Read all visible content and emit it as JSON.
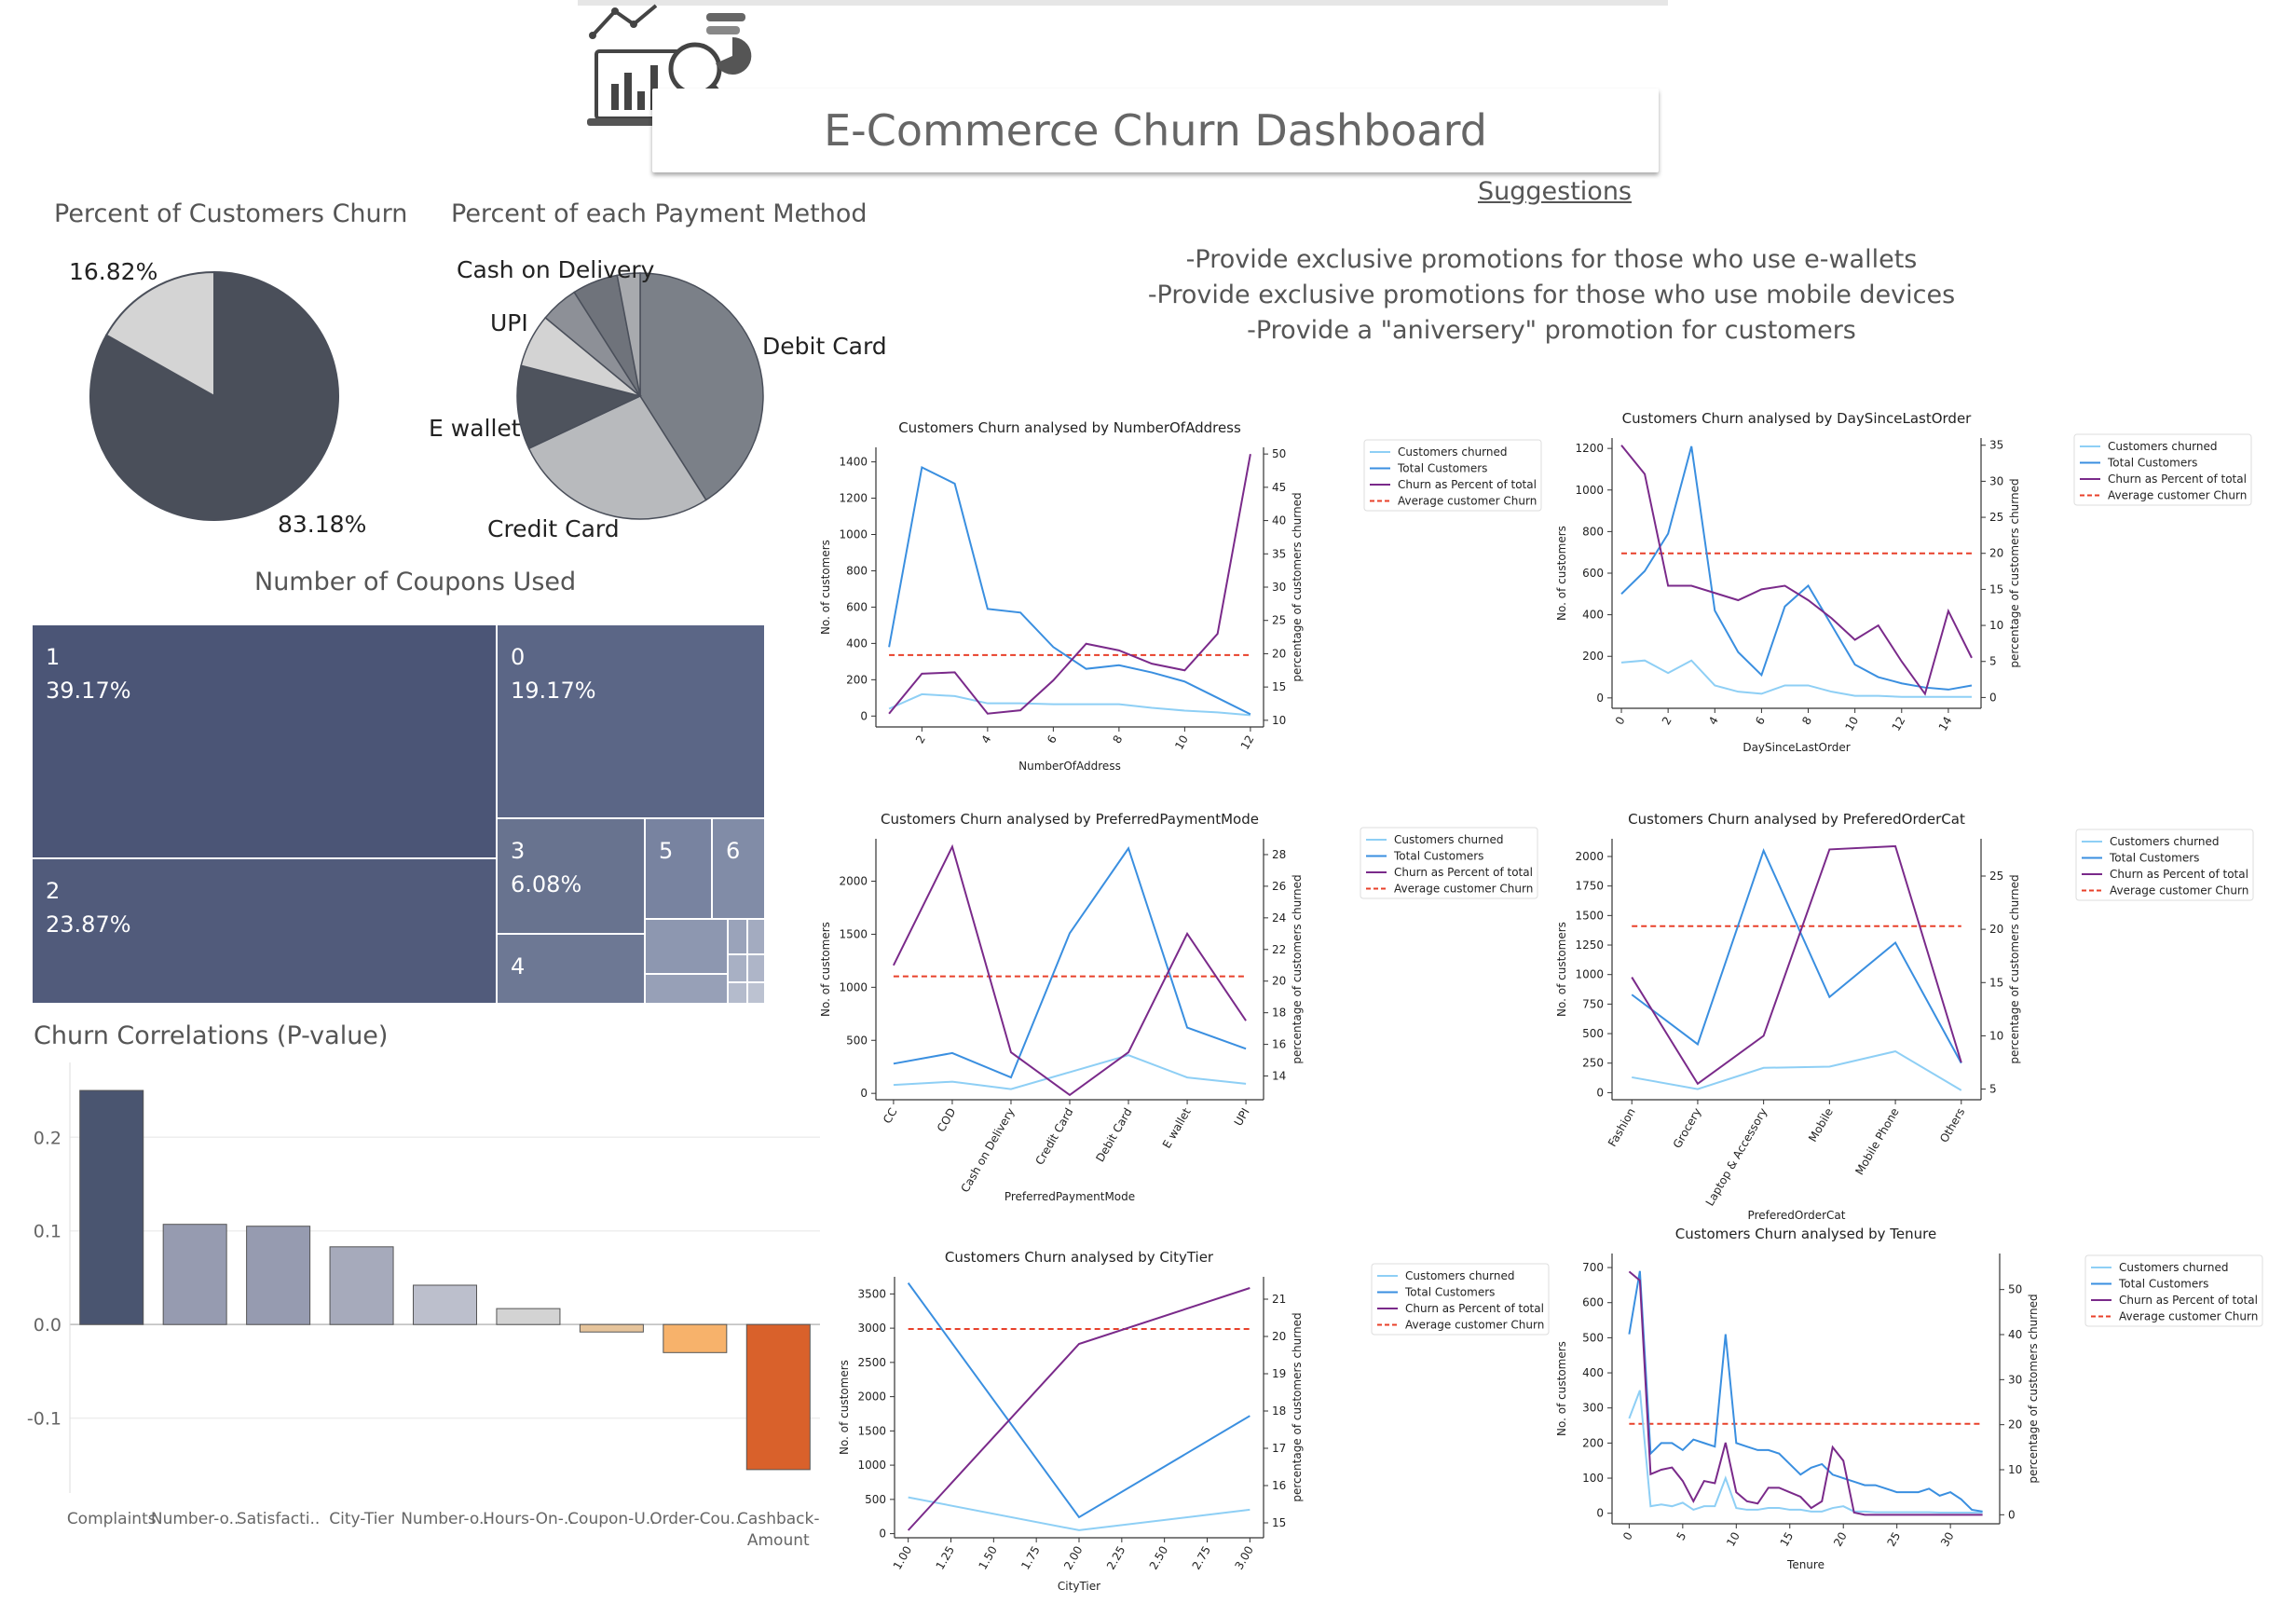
{
  "dashboard": {
    "title": "E-Commerce Churn Dashboard",
    "suggestions_heading": "Suggestions",
    "suggestions": [
      "-Provide exclusive promotions for those who use e-wallets",
      "-Provide exclusive promotions for those who use mobile devices",
      "-Provide a \"aniversery\" promotion for customers"
    ]
  },
  "legend_labels": [
    "Customers churned",
    "Total Customers",
    "Churn as Percent of total",
    "Average customer Churn"
  ],
  "colors": {
    "dark": "#4a5570",
    "churned": "#8ecff5",
    "total": "#3a8fe0",
    "percent": "#7a2a8a",
    "avg": "#e8402a"
  },
  "chart_data": [
    {
      "id": "churn_pie",
      "type": "pie",
      "title": "Percent of Customers Churn",
      "slices": [
        {
          "label": "83.18%",
          "value": 83.18,
          "color": "#4a4f5a"
        },
        {
          "label": "16.82%",
          "value": 16.82,
          "color": "#d4d4d4"
        }
      ]
    },
    {
      "id": "payment_pie",
      "type": "pie",
      "title": "Percent of each Payment Method",
      "slices": [
        {
          "label": "Debit Card",
          "value": 41,
          "color": "#7b8088"
        },
        {
          "label": "Credit Card",
          "value": 27,
          "color": "#b8babd"
        },
        {
          "label": "E wallet",
          "value": 11,
          "color": "#4e535d"
        },
        {
          "label": "UPI",
          "value": 7,
          "color": "#d3d3d3"
        },
        {
          "label": "",
          "value": 5,
          "color": "#8d9097"
        },
        {
          "label": "Cash on Delivery",
          "value": 6,
          "color": "#6f737b"
        },
        {
          "label": "",
          "value": 3,
          "color": "#a8aaae"
        }
      ]
    },
    {
      "id": "coupons_treemap",
      "type": "treemap",
      "title": "Number of Coupons Used",
      "cells": [
        {
          "label": "1",
          "value": "39.17%"
        },
        {
          "label": "0",
          "value": "19.17%"
        },
        {
          "label": "2",
          "value": "23.87%"
        },
        {
          "label": "3",
          "value": "6.08%"
        },
        {
          "label": "4",
          "value": ""
        },
        {
          "label": "5",
          "value": ""
        },
        {
          "label": "6",
          "value": ""
        }
      ]
    },
    {
      "id": "pvalue_bars",
      "type": "bar",
      "title": "Churn Correlations (P-value)",
      "categories": [
        "Complaints",
        "Number-o..",
        "Satisfacti..",
        "City-Tier",
        "Number-o..",
        "Hours-On-..",
        "Coupon-U..",
        "Order-Cou..",
        "Cashback-\nAmount"
      ],
      "values": [
        0.25,
        0.107,
        0.105,
        0.083,
        0.042,
        0.017,
        -0.008,
        -0.03,
        -0.155
      ],
      "colors": [
        "#4a5570",
        "#969bb0",
        "#969bb0",
        "#a6aabb",
        "#bcbfcc",
        "#d3d3d3",
        "#e6c49b",
        "#f7b26b",
        "#d9612b"
      ],
      "yticks": [
        0.2,
        0.1,
        0.0,
        -0.1
      ],
      "ytick_labels": [
        "0.2",
        "0.1",
        "0.0",
        "-0.1"
      ],
      "ylim": [
        -0.18,
        0.26
      ]
    },
    {
      "id": "addr",
      "type": "line",
      "title": "Customers Churn analysed by NumberOfAddress",
      "xlabel": "NumberOfAddress",
      "ylabel": "No. of customers",
      "y2label": "percentage of customers churned",
      "x": [
        1,
        2,
        3,
        4,
        5,
        6,
        7,
        8,
        9,
        10,
        11,
        12
      ],
      "xticks": [
        2,
        4,
        6,
        8,
        10,
        12
      ],
      "xtick_labels": [
        "2",
        "4",
        "6",
        "8",
        "10",
        "12"
      ],
      "xlim": [
        0.6,
        12.4
      ],
      "yticks": [
        0,
        200,
        400,
        600,
        800,
        1000,
        1200,
        1400
      ],
      "ytick_labels": [
        "0",
        "200",
        "400",
        "600",
        "800",
        "1000",
        "1200",
        "1400"
      ],
      "ylim": [
        -60,
        1480
      ],
      "y2ticks": [
        10,
        15,
        20,
        25,
        30,
        35,
        40,
        45,
        50
      ],
      "y2tick_labels": [
        "10",
        "15",
        "20",
        "25",
        "30",
        "35",
        "40",
        "45",
        "50"
      ],
      "y2lim": [
        9,
        51
      ],
      "churned": [
        40,
        120,
        110,
        70,
        70,
        65,
        65,
        65,
        45,
        30,
        20,
        5
      ],
      "total": [
        380,
        1370,
        1280,
        590,
        570,
        380,
        260,
        280,
        240,
        190,
        100,
        10
      ],
      "percent": [
        11,
        17,
        17.2,
        11,
        11.5,
        16,
        21.5,
        20.5,
        18.5,
        17.5,
        23,
        50
      ],
      "average": 19.8
    },
    {
      "id": "days",
      "type": "line",
      "title": "Customers Churn analysed by DaySinceLastOrder",
      "xlabel": "DaySinceLastOrder",
      "ylabel": "No. of customers",
      "y2label": "percentage of customers churned",
      "x": [
        0,
        1,
        2,
        3,
        4,
        5,
        6,
        7,
        8,
        9,
        10,
        11,
        12,
        13,
        14,
        15
      ],
      "xticks": [
        0,
        2,
        4,
        6,
        8,
        10,
        12,
        14
      ],
      "xtick_labels": [
        "0",
        "2",
        "4",
        "6",
        "8",
        "10",
        "12",
        "14"
      ],
      "xlim": [
        -0.4,
        15.4
      ],
      "yticks": [
        0,
        200,
        400,
        600,
        800,
        1000,
        1200
      ],
      "ytick_labels": [
        "0",
        "200",
        "400",
        "600",
        "800",
        "1000",
        "1200"
      ],
      "ylim": [
        -50,
        1250
      ],
      "y2ticks": [
        0,
        5,
        10,
        15,
        20,
        25,
        30,
        35
      ],
      "y2tick_labels": [
        "0",
        "5",
        "10",
        "15",
        "20",
        "25",
        "30",
        "35"
      ],
      "y2lim": [
        -1.5,
        36
      ],
      "churned": [
        170,
        180,
        120,
        180,
        60,
        30,
        20,
        60,
        60,
        30,
        10,
        10,
        5,
        5,
        5,
        5
      ],
      "total": [
        500,
        610,
        790,
        1210,
        420,
        220,
        110,
        440,
        540,
        350,
        160,
        100,
        70,
        50,
        40,
        60
      ],
      "percent": [
        35,
        31,
        15.5,
        15.5,
        14.5,
        13.5,
        15,
        15.5,
        13.5,
        11,
        8,
        10,
        5,
        0.5,
        12,
        5.5
      ],
      "average": 20
    },
    {
      "id": "payment",
      "type": "line",
      "title": "Customers Churn analysed by PreferredPaymentMode",
      "xlabel": "PreferredPaymentMode",
      "ylabel": "No. of customers",
      "y2label": "percentage of customers churned",
      "categories": [
        "CC",
        "COD",
        "Cash on Delivery",
        "Credit Card",
        "Debit Card",
        "E wallet",
        "UPI"
      ],
      "yticks": [
        0,
        500,
        1000,
        1500,
        2000
      ],
      "ytick_labels": [
        "0",
        "500",
        "1000",
        "1500",
        "2000"
      ],
      "ylim": [
        -60,
        2400
      ],
      "y2ticks": [
        14,
        16,
        18,
        20,
        22,
        24,
        26,
        28
      ],
      "y2tick_labels": [
        "14",
        "16",
        "18",
        "20",
        "22",
        "24",
        "26",
        "28"
      ],
      "y2lim": [
        12.5,
        29
      ],
      "churned": [
        80,
        110,
        40,
        200,
        360,
        150,
        90
      ],
      "total": [
        280,
        380,
        150,
        1510,
        2310,
        620,
        420
      ],
      "percent": [
        21,
        28.5,
        15.5,
        12.8,
        15.5,
        23,
        17.5
      ],
      "average": 20.3
    },
    {
      "id": "ordercat",
      "type": "line",
      "title": "Customers Churn analysed by PreferedOrderCat",
      "xlabel": "PreferedOrderCat",
      "ylabel": "No. of customers",
      "y2label": "percentage of customers churned",
      "categories": [
        "Fashion",
        "Grocery",
        "Laptop & Accessory",
        "Mobile",
        "Mobile Phone",
        "Others"
      ],
      "yticks": [
        0,
        250,
        500,
        750,
        1000,
        1250,
        1500,
        1750,
        2000
      ],
      "ytick_labels": [
        "0",
        "250",
        "500",
        "750",
        "1000",
        "1250",
        "1500",
        "1750",
        "2000"
      ],
      "ylim": [
        -60,
        2150
      ],
      "y2ticks": [
        5,
        10,
        15,
        20,
        25
      ],
      "y2tick_labels": [
        "5",
        "10",
        "15",
        "20",
        "25"
      ],
      "y2lim": [
        4,
        28.5
      ],
      "churned": [
        130,
        30,
        210,
        220,
        350,
        20
      ],
      "total": [
        830,
        410,
        2050,
        810,
        1270,
        250
      ],
      "percent": [
        15.5,
        5.5,
        10,
        27.5,
        27.8,
        7.5
      ],
      "average": 20.3
    },
    {
      "id": "citytier",
      "type": "line",
      "title": "Customers Churn analysed by CityTier",
      "xlabel": "CityTier",
      "ylabel": "No. of customers",
      "y2label": "percentage of customers churned",
      "x": [
        1,
        2,
        3
      ],
      "xticks": [
        1,
        1.25,
        1.5,
        1.75,
        2,
        2.25,
        2.5,
        2.75,
        3
      ],
      "xtick_labels": [
        "1.00",
        "1.25",
        "1.50",
        "1.75",
        "2.00",
        "2.25",
        "2.50",
        "2.75",
        "3.00"
      ],
      "xlim": [
        0.92,
        3.08
      ],
      "yticks": [
        0,
        500,
        1000,
        1500,
        2000,
        2500,
        3000,
        3500
      ],
      "ytick_labels": [
        "0",
        "500",
        "1000",
        "1500",
        "2000",
        "2500",
        "3000",
        "3500"
      ],
      "ylim": [
        -60,
        3750
      ],
      "y2ticks": [
        15,
        16,
        17,
        18,
        19,
        20,
        21
      ],
      "y2tick_labels": [
        "15",
        "16",
        "17",
        "18",
        "19",
        "20",
        "21"
      ],
      "y2lim": [
        14.6,
        21.6
      ],
      "churned": [
        530,
        50,
        350
      ],
      "total": [
        3660,
        240,
        1720
      ],
      "percent": [
        14.8,
        19.8,
        21.3
      ],
      "average": 20.2
    },
    {
      "id": "tenure",
      "type": "line",
      "title": "Customers Churn analysed by Tenure",
      "xlabel": "Tenure",
      "ylabel": "No. of customers",
      "y2label": "percentage of customers churned",
      "x": [
        0,
        1,
        2,
        3,
        4,
        5,
        6,
        7,
        8,
        9,
        10,
        11,
        12,
        13,
        14,
        15,
        16,
        17,
        18,
        19,
        20,
        21,
        22,
        23,
        24,
        25,
        26,
        27,
        28,
        29,
        30,
        31,
        32,
        33
      ],
      "xticks": [
        0,
        5,
        10,
        15,
        20,
        25,
        30
      ],
      "xtick_labels": [
        "0",
        "5",
        "10",
        "15",
        "20",
        "25",
        "30"
      ],
      "xlim": [
        -1.6,
        34.6
      ],
      "yticks": [
        0,
        100,
        200,
        300,
        400,
        500,
        600,
        700
      ],
      "ytick_labels": [
        "0",
        "100",
        "200",
        "300",
        "400",
        "500",
        "600",
        "700"
      ],
      "ylim": [
        -30,
        740
      ],
      "y2ticks": [
        0,
        10,
        20,
        30,
        40,
        50
      ],
      "y2tick_labels": [
        "0",
        "10",
        "20",
        "30",
        "40",
        "50"
      ],
      "y2lim": [
        -2,
        58
      ],
      "churned": [
        270,
        350,
        20,
        25,
        20,
        30,
        10,
        20,
        20,
        100,
        15,
        10,
        10,
        15,
        15,
        10,
        10,
        5,
        5,
        15,
        20,
        5,
        5,
        3,
        3,
        3,
        3,
        3,
        3,
        2,
        2,
        2,
        2,
        2
      ],
      "total": [
        510,
        690,
        170,
        200,
        200,
        180,
        210,
        200,
        190,
        510,
        200,
        190,
        180,
        180,
        170,
        140,
        110,
        130,
        140,
        110,
        100,
        90,
        80,
        80,
        70,
        60,
        60,
        60,
        70,
        50,
        60,
        40,
        10,
        5
      ],
      "percent": [
        54,
        52,
        9,
        10,
        10.5,
        7.5,
        3,
        7.5,
        7,
        16,
        5,
        3,
        2.5,
        6,
        6,
        5,
        4,
        1.5,
        3,
        15,
        12,
        0.5,
        0,
        0,
        0,
        0,
        0,
        0,
        0,
        0,
        0,
        0,
        0,
        0
      ],
      "average": 20.2
    }
  ]
}
